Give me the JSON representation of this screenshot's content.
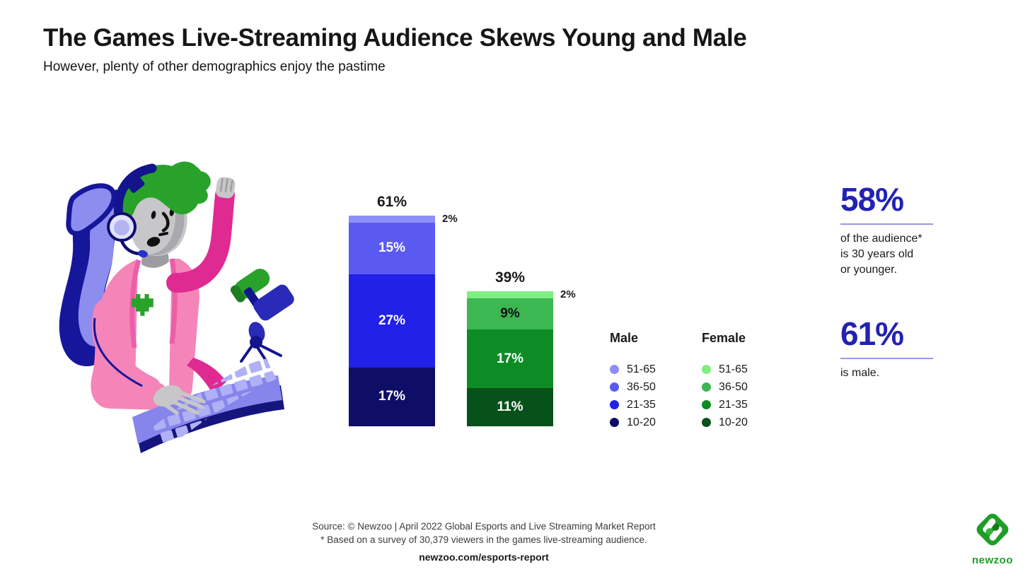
{
  "page": {
    "title": "The Games Live-Streaming Audience Skews Young and Male",
    "subtitle": "However, plenty of other demographics enjoy the pastime"
  },
  "chart_data": {
    "type": "bar",
    "subtype": "stacked-column",
    "unit": "%",
    "categories": [
      "Male",
      "Female"
    ],
    "age_groups": [
      "51-65",
      "36-50",
      "21-35",
      "10-20"
    ],
    "bars": [
      {
        "name": "Male",
        "total": 61,
        "total_label": "61%",
        "segments": [
          {
            "age": "51-65",
            "value": 2,
            "label": "2%",
            "color": "#8e8ef8",
            "placement": "outside"
          },
          {
            "age": "36-50",
            "value": 15,
            "label": "15%",
            "color": "#5a5af1",
            "text_color": "#ffffff",
            "placement": "inside"
          },
          {
            "age": "21-35",
            "value": 27,
            "label": "27%",
            "color": "#2121e8",
            "text_color": "#ffffff",
            "placement": "inside"
          },
          {
            "age": "10-20",
            "value": 17,
            "label": "17%",
            "color": "#0e0e66",
            "text_color": "#ffffff",
            "placement": "inside"
          }
        ]
      },
      {
        "name": "Female",
        "total": 39,
        "total_label": "39%",
        "segments": [
          {
            "age": "51-65",
            "value": 2,
            "label": "2%",
            "color": "#7fee82",
            "placement": "outside"
          },
          {
            "age": "36-50",
            "value": 9,
            "label": "9%",
            "color": "#3cb751",
            "text_color": "#111111",
            "placement": "inside"
          },
          {
            "age": "21-35",
            "value": 17,
            "label": "17%",
            "color": "#0d8c26",
            "text_color": "#ffffff",
            "placement": "inside"
          },
          {
            "age": "10-20",
            "value": 11,
            "label": "11%",
            "color": "#07511a",
            "text_color": "#ffffff",
            "placement": "inside"
          }
        ]
      }
    ],
    "legend": {
      "position": "right-of-bars",
      "groups": [
        {
          "title": "Male",
          "items": [
            {
              "label": "51-65",
              "color": "#8e8ef8"
            },
            {
              "label": "36-50",
              "color": "#5a5af1"
            },
            {
              "label": "21-35",
              "color": "#2121e8"
            },
            {
              "label": "10-20",
              "color": "#0e0e66"
            }
          ]
        },
        {
          "title": "Female",
          "items": [
            {
              "label": "51-65",
              "color": "#7fee82"
            },
            {
              "label": "36-50",
              "color": "#3cb751"
            },
            {
              "label": "21-35",
              "color": "#0d8c26"
            },
            {
              "label": "10-20",
              "color": "#07511a"
            }
          ]
        }
      ]
    }
  },
  "stats": [
    {
      "value": "58%",
      "lines": [
        "of the audience*",
        "is 30 years old",
        "or younger."
      ]
    },
    {
      "value": "61%",
      "lines": [
        "is male."
      ]
    }
  ],
  "footer": {
    "source_line1": "Source: © Newzoo | April 2022 Global Esports and Live Streaming Market Report",
    "source_line2": "* Based on a survey of 30,379 viewers in the games live-streaming audience.",
    "link": "newzoo.com/esports-report"
  },
  "logo": {
    "wordmark": "newzoo",
    "color": "#1f9e27"
  },
  "icons": {
    "illustration": "streamer-illustration",
    "logo_mark": "newzoo-diamond-logo"
  },
  "colors": {
    "accent_blue": "#2222b4",
    "stat_underline": "#9898e8",
    "text": "#1a1a1a"
  }
}
